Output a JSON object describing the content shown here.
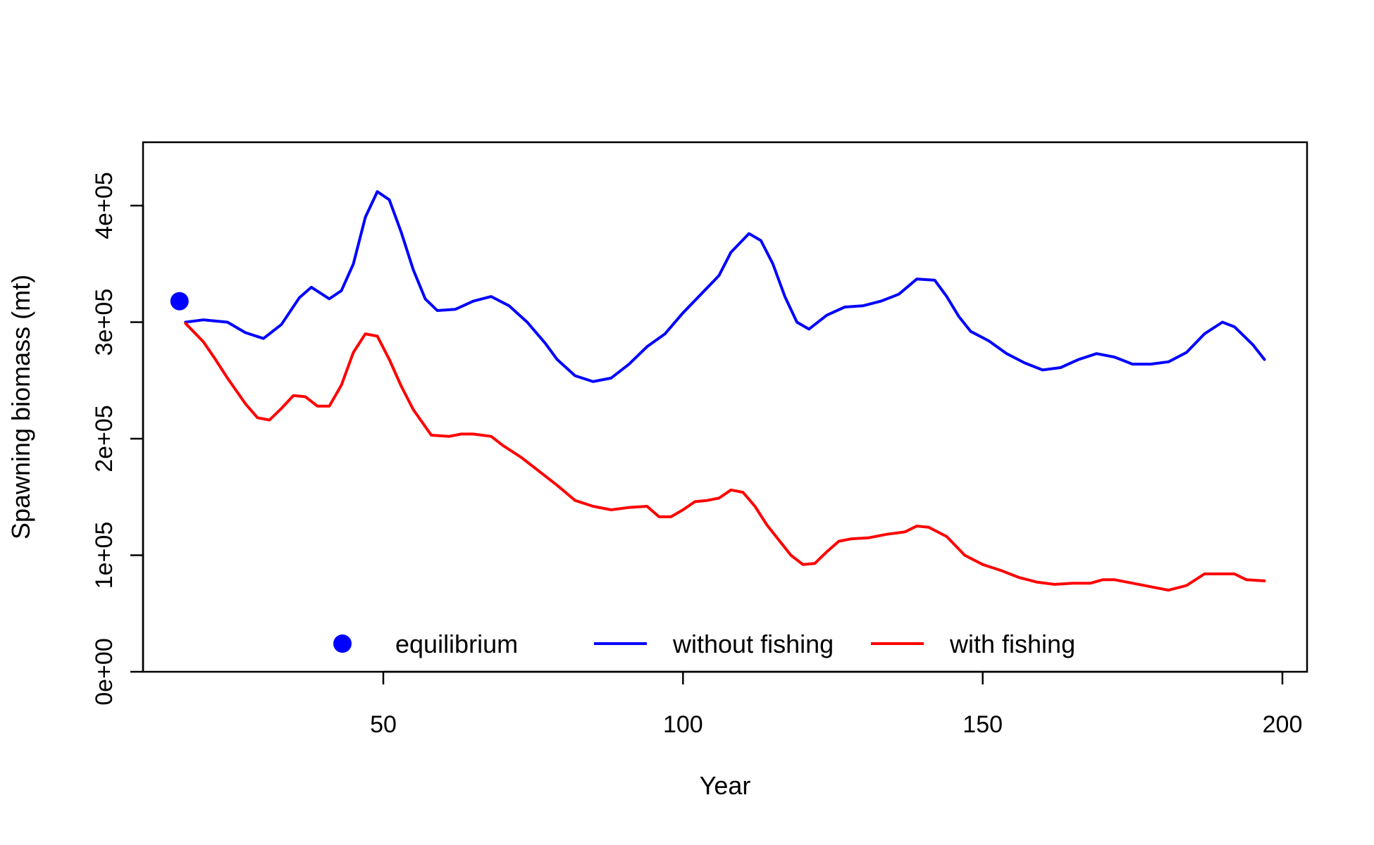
{
  "chart_data": {
    "type": "line",
    "title": "",
    "xlabel": "Year",
    "ylabel": "Spawning biomass (mt)",
    "xlim": [
      10,
      205
    ],
    "ylim": [
      0,
      455000
    ],
    "x_ticks": [
      50,
      100,
      150,
      200
    ],
    "x_tick_labels": [
      "50",
      "100",
      "150",
      "200"
    ],
    "y_ticks": [
      0,
      100000,
      200000,
      300000,
      400000
    ],
    "y_tick_labels": [
      "0e+00",
      "1e+05",
      "2e+05",
      "3e+05",
      "4e+05"
    ],
    "grid": false,
    "legend_position": "bottom",
    "legend": [
      {
        "label": "equilibrium",
        "marker": "point",
        "color": "#0000ff"
      },
      {
        "label": "without fishing",
        "marker": "line",
        "color": "#0000ff"
      },
      {
        "label": "with fishing",
        "marker": "line",
        "color": "#ff0000"
      }
    ],
    "equilibrium": {
      "x": 16,
      "y": 318000,
      "color": "#0000ff"
    },
    "series": [
      {
        "name": "without fishing",
        "color": "#0000ff",
        "points": [
          [
            17,
            300000
          ],
          [
            20,
            302000
          ],
          [
            24,
            300000
          ],
          [
            27,
            291000
          ],
          [
            30,
            286000
          ],
          [
            33,
            298000
          ],
          [
            36,
            321000
          ],
          [
            38,
            330000
          ],
          [
            41,
            320000
          ],
          [
            43,
            327000
          ],
          [
            45,
            350000
          ],
          [
            47,
            390000
          ],
          [
            49,
            412000
          ],
          [
            51,
            405000
          ],
          [
            53,
            377000
          ],
          [
            55,
            345000
          ],
          [
            57,
            320000
          ],
          [
            59,
            310000
          ],
          [
            62,
            311000
          ],
          [
            65,
            318000
          ],
          [
            68,
            322000
          ],
          [
            71,
            314000
          ],
          [
            74,
            300000
          ],
          [
            77,
            282000
          ],
          [
            79,
            268000
          ],
          [
            82,
            254000
          ],
          [
            85,
            249000
          ],
          [
            88,
            252000
          ],
          [
            91,
            264000
          ],
          [
            94,
            279000
          ],
          [
            97,
            290000
          ],
          [
            100,
            308000
          ],
          [
            103,
            324000
          ],
          [
            106,
            340000
          ],
          [
            108,
            360000
          ],
          [
            111,
            376000
          ],
          [
            113,
            370000
          ],
          [
            115,
            350000
          ],
          [
            117,
            322000
          ],
          [
            119,
            300000
          ],
          [
            121,
            294000
          ],
          [
            124,
            306000
          ],
          [
            127,
            313000
          ],
          [
            130,
            314000
          ],
          [
            133,
            318000
          ],
          [
            136,
            324000
          ],
          [
            139,
            337000
          ],
          [
            142,
            336000
          ],
          [
            144,
            322000
          ],
          [
            146,
            305000
          ],
          [
            148,
            292000
          ],
          [
            151,
            284000
          ],
          [
            154,
            273000
          ],
          [
            157,
            265000
          ],
          [
            160,
            259000
          ],
          [
            163,
            261000
          ],
          [
            166,
            268000
          ],
          [
            169,
            273000
          ],
          [
            172,
            270000
          ],
          [
            175,
            264000
          ],
          [
            178,
            264000
          ],
          [
            181,
            266000
          ],
          [
            184,
            274000
          ],
          [
            187,
            290000
          ],
          [
            190,
            300000
          ],
          [
            192,
            296000
          ],
          [
            195,
            281000
          ],
          [
            197,
            268000
          ]
        ]
      },
      {
        "name": "with fishing",
        "color": "#ff0000",
        "points": [
          [
            17,
            299000
          ],
          [
            20,
            283000
          ],
          [
            22,
            268000
          ],
          [
            24,
            252000
          ],
          [
            27,
            230000
          ],
          [
            29,
            218000
          ],
          [
            31,
            216000
          ],
          [
            33,
            226000
          ],
          [
            35,
            237000
          ],
          [
            37,
            236000
          ],
          [
            39,
            228000
          ],
          [
            41,
            228000
          ],
          [
            43,
            246000
          ],
          [
            45,
            274000
          ],
          [
            47,
            290000
          ],
          [
            49,
            288000
          ],
          [
            51,
            268000
          ],
          [
            53,
            245000
          ],
          [
            55,
            225000
          ],
          [
            58,
            203000
          ],
          [
            61,
            202000
          ],
          [
            63,
            204000
          ],
          [
            65,
            204000
          ],
          [
            68,
            202000
          ],
          [
            70,
            194000
          ],
          [
            73,
            184000
          ],
          [
            76,
            172000
          ],
          [
            79,
            160000
          ],
          [
            82,
            147000
          ],
          [
            85,
            142000
          ],
          [
            88,
            139000
          ],
          [
            91,
            141000
          ],
          [
            94,
            142000
          ],
          [
            96,
            133000
          ],
          [
            98,
            133000
          ],
          [
            100,
            139000
          ],
          [
            102,
            146000
          ],
          [
            104,
            147000
          ],
          [
            106,
            149000
          ],
          [
            108,
            156000
          ],
          [
            110,
            154000
          ],
          [
            112,
            142000
          ],
          [
            114,
            126000
          ],
          [
            116,
            113000
          ],
          [
            118,
            100000
          ],
          [
            120,
            92000
          ],
          [
            122,
            93000
          ],
          [
            124,
            103000
          ],
          [
            126,
            112000
          ],
          [
            128,
            114000
          ],
          [
            131,
            115000
          ],
          [
            134,
            118000
          ],
          [
            137,
            120000
          ],
          [
            139,
            125000
          ],
          [
            141,
            124000
          ],
          [
            144,
            116000
          ],
          [
            147,
            100000
          ],
          [
            150,
            92000
          ],
          [
            153,
            87000
          ],
          [
            156,
            81000
          ],
          [
            159,
            77000
          ],
          [
            162,
            75000
          ],
          [
            165,
            76000
          ],
          [
            168,
            76000
          ],
          [
            170,
            79000
          ],
          [
            172,
            79000
          ],
          [
            175,
            76000
          ],
          [
            178,
            73000
          ],
          [
            181,
            70000
          ],
          [
            184,
            74000
          ],
          [
            187,
            84000
          ],
          [
            190,
            84000
          ],
          [
            192,
            84000
          ],
          [
            194,
            79000
          ],
          [
            197,
            78000
          ]
        ]
      }
    ]
  }
}
